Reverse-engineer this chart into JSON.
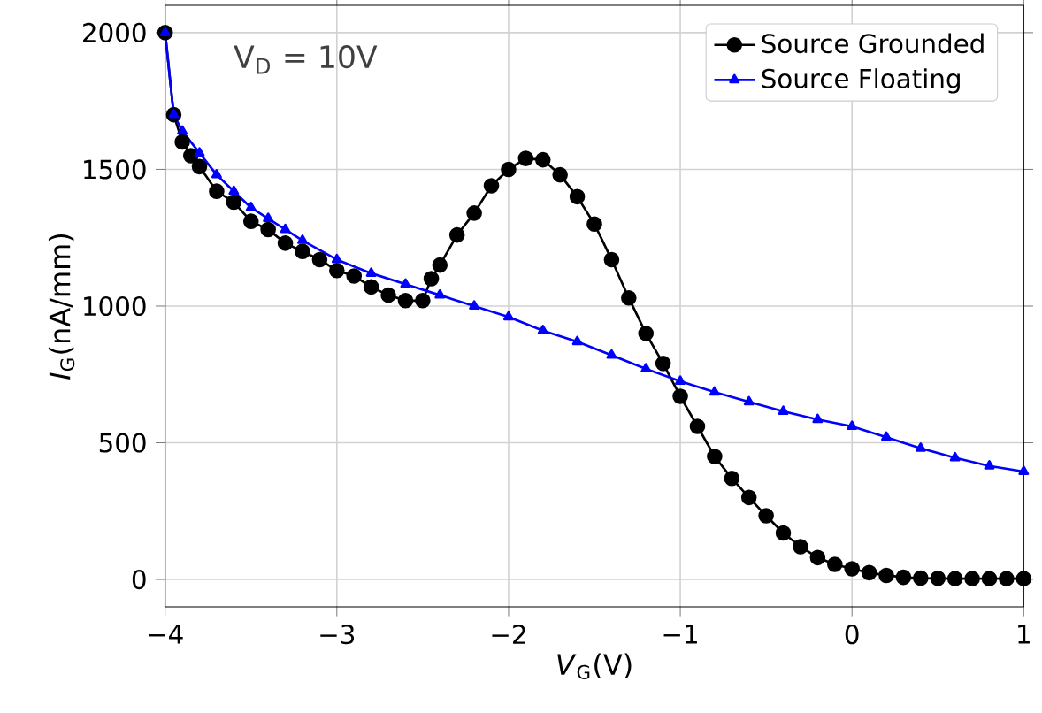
{
  "chart_data": {
    "type": "line",
    "xlabel": "*V*$_{G}$(V)",
    "ylabel": "*I*$_{G}$(nA/mm)",
    "annotations": [
      "V$_{D}$ = 10V"
    ],
    "xlim": [
      -4,
      1
    ],
    "ylim": [
      -100,
      2100
    ],
    "xticks": [
      {
        "value": -4,
        "label": "−4"
      },
      {
        "value": -3,
        "label": "−3"
      },
      {
        "value": -2,
        "label": "−2"
      },
      {
        "value": -1,
        "label": "−1"
      },
      0,
      1
    ],
    "yticks": [
      0,
      500,
      1000,
      1500,
      2000
    ],
    "grid": true,
    "legend": "top right",
    "series": [
      {
        "name": "Source Grounded",
        "color": "#000000",
        "marker": "circle",
        "x": [
          -4,
          -3.95,
          -3.9,
          -3.85,
          -3.8,
          -3.7,
          -3.6,
          -3.5,
          -3.4,
          -3.3,
          -3.2,
          -3.1,
          -3.0,
          -2.9,
          -2.8,
          -2.7,
          -2.6,
          -2.5,
          -2.45,
          -2.4,
          -2.3,
          -2.2,
          -2.1,
          -2.0,
          -1.9,
          -1.8,
          -1.7,
          -1.6,
          -1.5,
          -1.4,
          -1.3,
          -1.2,
          -1.1,
          -1.0,
          -0.9,
          -0.8,
          -0.7,
          -0.6,
          -0.5,
          -0.4,
          -0.3,
          -0.2,
          -0.1,
          0,
          0.1,
          0.2,
          0.3,
          0.4,
          0.5,
          0.6,
          0.7,
          0.8,
          0.9,
          1.0
        ],
        "values": [
          2000,
          1700,
          1600,
          1550,
          1510,
          1420,
          1380,
          1310,
          1280,
          1230,
          1200,
          1170,
          1130,
          1110,
          1070,
          1040,
          1020,
          1020,
          1100,
          1150,
          1260,
          1340,
          1440,
          1500,
          1540,
          1535,
          1480,
          1400,
          1300,
          1170,
          1030,
          900,
          790,
          670,
          560,
          450,
          370,
          300,
          233,
          170,
          120,
          80,
          55,
          39,
          25,
          15,
          8,
          5,
          4,
          3,
          3,
          3,
          3,
          3
        ]
      },
      {
        "name": "Source Floating",
        "color": "#0000ff",
        "marker": "triangle",
        "x": [
          -4,
          -3.95,
          -3.9,
          -3.8,
          -3.7,
          -3.6,
          -3.5,
          -3.4,
          -3.3,
          -3.2,
          -3.0,
          -2.8,
          -2.6,
          -2.4,
          -2.2,
          -2.0,
          -1.8,
          -1.6,
          -1.4,
          -1.2,
          -1.0,
          -0.8,
          -0.6,
          -0.4,
          -0.2,
          0,
          0.2,
          0.4,
          0.6,
          0.8,
          1.0
        ],
        "values": [
          2000,
          1700,
          1640,
          1560,
          1480,
          1420,
          1360,
          1320,
          1280,
          1240,
          1170,
          1120,
          1080,
          1040,
          1000,
          960,
          910,
          870,
          820,
          770,
          725,
          685,
          650,
          615,
          585,
          560,
          520,
          480,
          445,
          415,
          395
        ]
      }
    ]
  }
}
